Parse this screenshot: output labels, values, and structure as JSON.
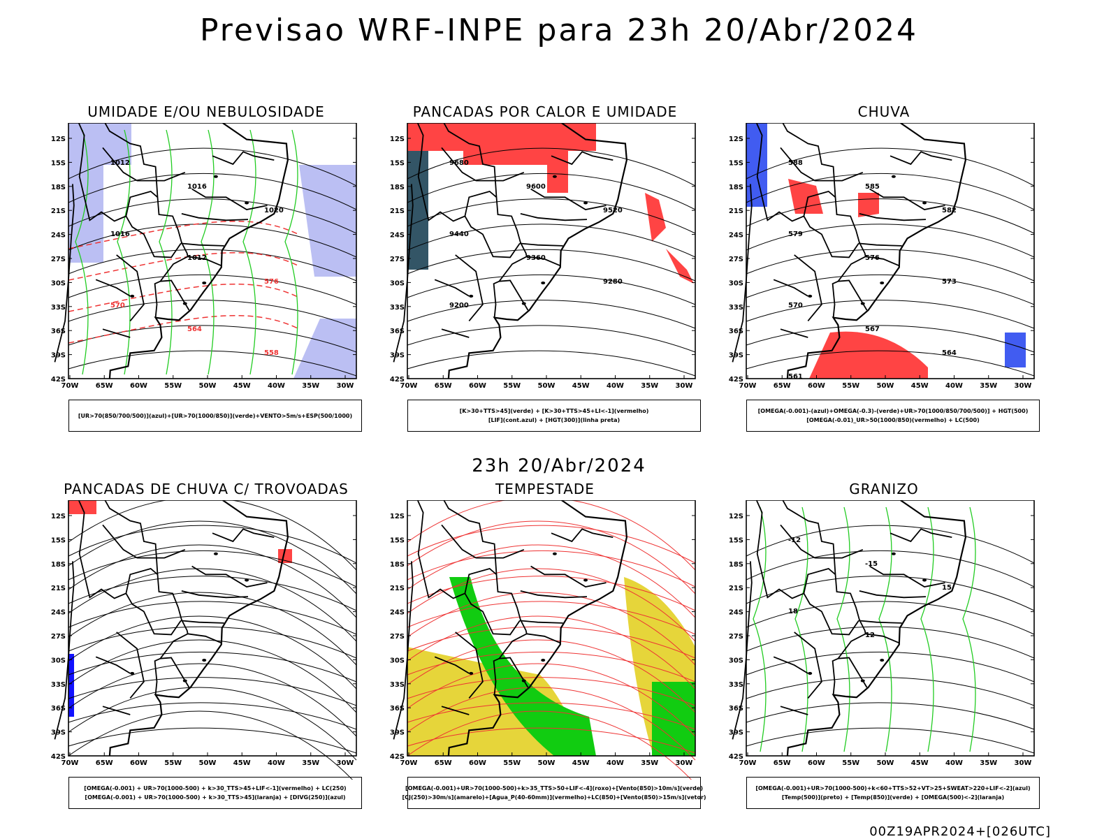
{
  "title": "Previsao WRF-INPE  para 23h 20/Abr/2024",
  "mid_title": "23h 20/Abr/2024",
  "footer": "00Z19APR2024+[026UTC]",
  "lat_ticks": [
    "12S",
    "15S",
    "18S",
    "21S",
    "24S",
    "27S",
    "30S",
    "33S",
    "36S",
    "39S",
    "42S"
  ],
  "lon_ticks": [
    "70W",
    "65W",
    "60W",
    "55W",
    "50W",
    "45W",
    "40W",
    "35W",
    "30W"
  ],
  "panels": [
    {
      "title": "UMIDADE E/OU NEBULOSIDADE",
      "legend": [
        "[UR>70(850/700/500)](azul)+[UR>70(1000/850)](verde)+VENTO>5m/s+ESP(500/1000)"
      ],
      "contour_labels": [
        "1012",
        "1016",
        "1020",
        "1016",
        "1012",
        "576",
        "570",
        "564",
        "558"
      ]
    },
    {
      "title": "PANCADAS POR CALOR E UMIDADE",
      "legend": [
        "[K>30+TTS>45](verde) + [K>30+TTS>45+LI<-1](vermelho)",
        "[LIF](cont.azul) + [HGT(300)](linha preta)"
      ],
      "contour_labels": [
        "9680",
        "9600",
        "9520",
        "9440",
        "9360",
        "9280",
        "9200"
      ]
    },
    {
      "title": "CHUVA",
      "legend": [
        "[OMEGA(-0.001)-(azul)+OMEGA(-0.3)-(verde)+UR>70(1000/850/700/500)] + HGT(500)",
        "[OMEGA(-0.01)_UR>50(1000/850)(vermelho) + LC(500)"
      ],
      "contour_labels": [
        "588",
        "585",
        "582",
        "579",
        "576",
        "573",
        "570",
        "567",
        "564",
        "561"
      ]
    },
    {
      "title": "PANCADAS DE CHUVA C/ TROVOADAS",
      "legend": [
        "[OMEGA(-0.001) + UR>70(1000-500) + k>30_TTS>45+LIF<-1](vermelho) + LC(250)",
        "[OMEGA(-0.001) + UR>70(1000-500) + k>30_TTS>45](laranja) + [DIVG(250)](azul)"
      ],
      "contour_labels": []
    },
    {
      "title": "TEMPESTADE",
      "legend": [
        "[OMEGA(-0.001)+UR>70(1000-500)+k>35_TTS>50+LIF<-4](roxo)+[Vento(850)>10m/s](verde)",
        "[CJ(250)>30m/s](amarelo)+[Agua_P(40-60mm)](vermelho)+LC(850)+[Vento(850)>15m/s](vetor)"
      ],
      "contour_labels": []
    },
    {
      "title": "GRANIZO",
      "legend": [
        "[OMEGA(-0.001)+UR>70(1000-500)+k<60+TTS>52+VT>25+SWEAT>220+LIF<-2](azul)",
        "[Temp(500)](preto) + [Temp(850)](verde) + [OMEGA(500)<-2](laranja)"
      ],
      "contour_labels": [
        "-12",
        "-15",
        "15",
        "18",
        "12"
      ]
    }
  ]
}
